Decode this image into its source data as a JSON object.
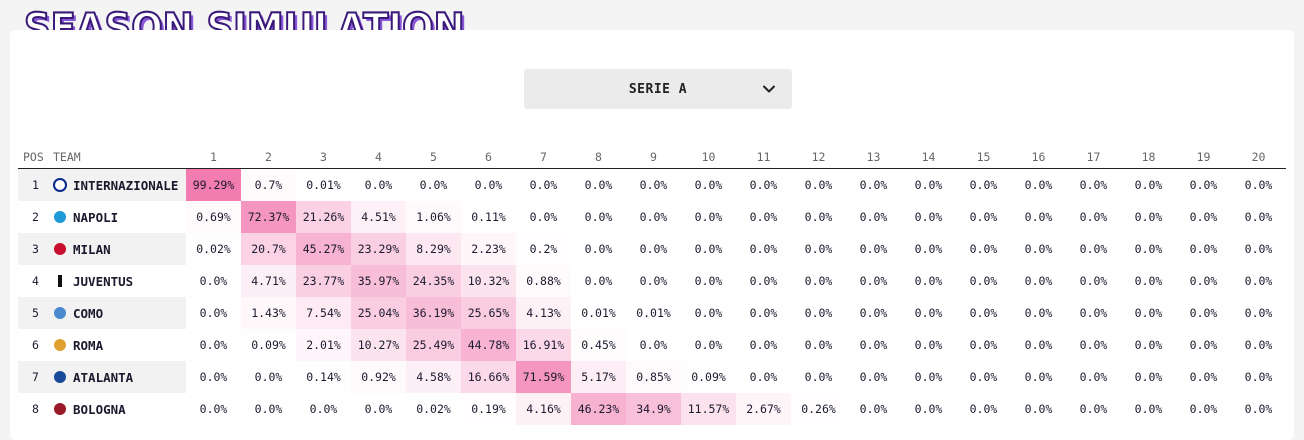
{
  "page": {
    "title": "SEASON SIMULATION"
  },
  "league_select": {
    "value": "SERIE A",
    "icon": "chevron-down-icon"
  },
  "table": {
    "headers": {
      "pos": "POS",
      "team": "TEAM"
    },
    "positions": [
      "1",
      "2",
      "3",
      "4",
      "5",
      "6",
      "7",
      "8",
      "9",
      "10",
      "11",
      "12",
      "13",
      "14",
      "15",
      "16",
      "17",
      "18",
      "19",
      "20"
    ],
    "rows": [
      {
        "pos": "1",
        "team": "INTERNAZIONALE",
        "logo": "inter-logo-icon",
        "logo_color": "#0a2a8a",
        "values": [
          "99.29%",
          "0.7%",
          "0.01%",
          "0.0%",
          "0.0%",
          "0.0%",
          "0.0%",
          "0.0%",
          "0.0%",
          "0.0%",
          "0.0%",
          "0.0%",
          "0.0%",
          "0.0%",
          "0.0%",
          "0.0%",
          "0.0%",
          "0.0%",
          "0.0%",
          "0.0%"
        ]
      },
      {
        "pos": "2",
        "team": "NAPOLI",
        "logo": "napoli-logo-icon",
        "logo_color": "#1e9ad6",
        "values": [
          "0.69%",
          "72.37%",
          "21.26%",
          "4.51%",
          "1.06%",
          "0.11%",
          "0.0%",
          "0.0%",
          "0.0%",
          "0.0%",
          "0.0%",
          "0.0%",
          "0.0%",
          "0.0%",
          "0.0%",
          "0.0%",
          "0.0%",
          "0.0%",
          "0.0%",
          "0.0%"
        ]
      },
      {
        "pos": "3",
        "team": "MILAN",
        "logo": "milan-logo-icon",
        "logo_color": "#c8102e",
        "values": [
          "0.02%",
          "20.7%",
          "45.27%",
          "23.29%",
          "8.29%",
          "2.23%",
          "0.2%",
          "0.0%",
          "0.0%",
          "0.0%",
          "0.0%",
          "0.0%",
          "0.0%",
          "0.0%",
          "0.0%",
          "0.0%",
          "0.0%",
          "0.0%",
          "0.0%",
          "0.0%"
        ]
      },
      {
        "pos": "4",
        "team": "JUVENTUS",
        "logo": "juventus-logo-icon",
        "logo_color": "#111111",
        "values": [
          "0.0%",
          "4.71%",
          "23.77%",
          "35.97%",
          "24.35%",
          "10.32%",
          "0.88%",
          "0.0%",
          "0.0%",
          "0.0%",
          "0.0%",
          "0.0%",
          "0.0%",
          "0.0%",
          "0.0%",
          "0.0%",
          "0.0%",
          "0.0%",
          "0.0%",
          "0.0%"
        ]
      },
      {
        "pos": "5",
        "team": "COMO",
        "logo": "como-logo-icon",
        "logo_color": "#4a8ad0",
        "values": [
          "0.0%",
          "1.43%",
          "7.54%",
          "25.04%",
          "36.19%",
          "25.65%",
          "4.13%",
          "0.01%",
          "0.01%",
          "0.0%",
          "0.0%",
          "0.0%",
          "0.0%",
          "0.0%",
          "0.0%",
          "0.0%",
          "0.0%",
          "0.0%",
          "0.0%",
          "0.0%"
        ]
      },
      {
        "pos": "6",
        "team": "ROMA",
        "logo": "roma-logo-icon",
        "logo_color": "#e0a030",
        "values": [
          "0.0%",
          "0.09%",
          "2.01%",
          "10.27%",
          "25.49%",
          "44.78%",
          "16.91%",
          "0.45%",
          "0.0%",
          "0.0%",
          "0.0%",
          "0.0%",
          "0.0%",
          "0.0%",
          "0.0%",
          "0.0%",
          "0.0%",
          "0.0%",
          "0.0%",
          "0.0%"
        ]
      },
      {
        "pos": "7",
        "team": "ATALANTA",
        "logo": "atalanta-logo-icon",
        "logo_color": "#1a4a9a",
        "values": [
          "0.0%",
          "0.0%",
          "0.14%",
          "0.92%",
          "4.58%",
          "16.66%",
          "71.59%",
          "5.17%",
          "0.85%",
          "0.09%",
          "0.0%",
          "0.0%",
          "0.0%",
          "0.0%",
          "0.0%",
          "0.0%",
          "0.0%",
          "0.0%",
          "0.0%",
          "0.0%"
        ]
      },
      {
        "pos": "8",
        "team": "BOLOGNA",
        "logo": "bologna-logo-icon",
        "logo_color": "#9a1a2a",
        "values": [
          "0.0%",
          "0.0%",
          "0.0%",
          "0.0%",
          "0.02%",
          "0.19%",
          "4.16%",
          "46.23%",
          "34.9%",
          "11.57%",
          "2.67%",
          "0.26%",
          "0.0%",
          "0.0%",
          "0.0%",
          "0.0%",
          "0.0%",
          "0.0%",
          "0.0%",
          "0.0%"
        ]
      }
    ]
  },
  "colors": {
    "heat": "#f06ca6",
    "title_stroke": "#3a1a78",
    "title_shadow": "#8a58d8"
  }
}
